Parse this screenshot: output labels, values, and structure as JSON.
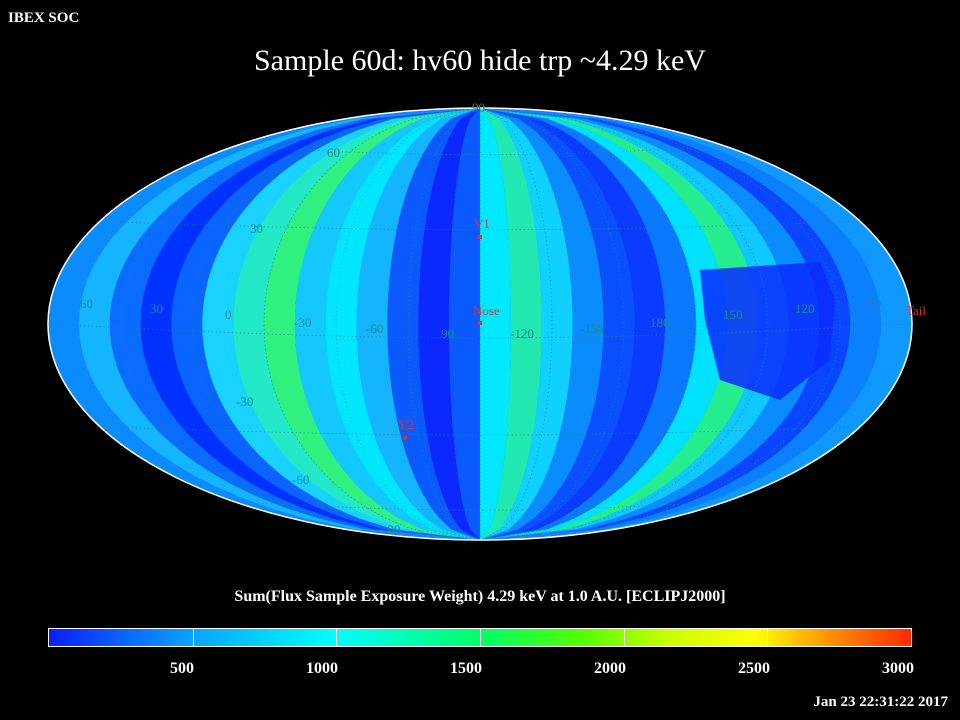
{
  "header": {
    "org": "IBEX SOC",
    "title": "Sample 60d: hv60 hide trp ~4.29 keV"
  },
  "map": {
    "projection": "Aitoff / Hammer equal-area, ecliptic J2000",
    "longitude_labels": [
      "60",
      "30",
      "0",
      "-30",
      "-60",
      "90",
      "-120",
      "-150",
      "180",
      "150",
      "120",
      "90"
    ],
    "latitude_labels": [
      "90",
      "60",
      "30",
      "-30",
      "-60",
      "-90"
    ],
    "markers": [
      {
        "label": "V1"
      },
      {
        "label": "Nose"
      },
      {
        "label": "Y2"
      },
      {
        "label": "Tail"
      }
    ],
    "marker_color": "#e03030"
  },
  "colorbar": {
    "label": "Sum(Flux Sample Exposure Weight) 4.29 keV at 1.0 A.U. [ECLIPJ2000]",
    "ticks": [
      "500",
      "1000",
      "1500",
      "2000",
      "2500",
      "3000"
    ],
    "tick_values": [
      500,
      1000,
      1500,
      2000,
      2500,
      3000
    ],
    "max": 3000
  },
  "footer": {
    "timestamp": "Jan 23 22:31:22 2017"
  }
}
